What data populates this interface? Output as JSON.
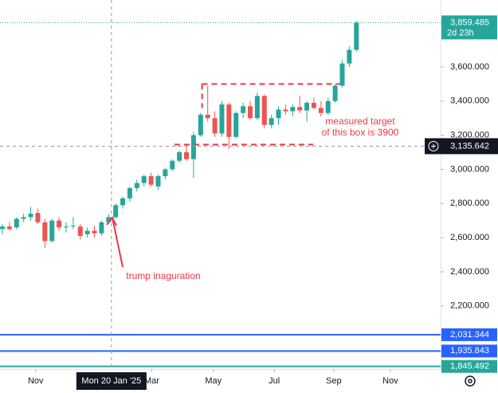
{
  "chart_data": {
    "type": "candlestick",
    "categories": [
      null,
      null,
      null,
      null,
      null,
      null,
      null,
      null,
      null,
      null,
      null,
      null,
      null,
      null,
      null,
      null,
      null,
      null,
      null,
      null,
      null,
      null,
      null,
      null,
      null,
      null,
      null,
      null,
      null,
      null,
      null,
      null,
      null,
      null,
      null,
      null,
      null,
      null,
      null,
      null,
      null,
      null,
      null,
      null,
      null,
      null,
      null,
      null,
      null,
      null,
      null
    ],
    "open": [
      2650,
      2665,
      2660,
      2710,
      2720,
      2745,
      2690,
      2580,
      2700,
      2660,
      2665,
      2665,
      2620,
      2640,
      2625,
      2690,
      2720,
      2790,
      2830,
      2890,
      2920,
      2960,
      2900,
      2960,
      3000,
      3050,
      3100,
      3060,
      3200,
      3320,
      3300,
      3210,
      3380,
      3190,
      3330,
      3370,
      3300,
      3430,
      3260,
      3300,
      3350,
      3340,
      3365,
      3345,
      3390,
      3360,
      3330,
      3400,
      3490,
      3620,
      3700
    ],
    "high": [
      2680,
      2690,
      2720,
      2740,
      2780,
      2770,
      2710,
      2710,
      2720,
      2690,
      2720,
      2680,
      2660,
      2670,
      2700,
      2740,
      2800,
      2840,
      2900,
      2940,
      2970,
      2980,
      2970,
      3010,
      3060,
      3110,
      3140,
      3220,
      3330,
      3490,
      3340,
      3400,
      3390,
      3340,
      3390,
      3400,
      3450,
      3440,
      3320,
      3370,
      3380,
      3380,
      3430,
      3400,
      3420,
      3400,
      3420,
      3500,
      3640,
      3720,
      3870
    ],
    "low": [
      2620,
      2640,
      2650,
      2690,
      2700,
      2680,
      2540,
      2570,
      2640,
      2630,
      2650,
      2590,
      2600,
      2600,
      2610,
      2680,
      2710,
      2770,
      2810,
      2870,
      2900,
      2900,
      2880,
      2940,
      2990,
      3040,
      3050,
      2950,
      3190,
      3280,
      3190,
      3190,
      3120,
      3180,
      3300,
      3290,
      3290,
      3240,
      3240,
      3260,
      3320,
      3310,
      3330,
      3280,
      3350,
      3310,
      3320,
      3390,
      3480,
      3600,
      3690
    ],
    "close": [
      2665,
      2650,
      2710,
      2720,
      2740,
      2690,
      2580,
      2700,
      2660,
      2665,
      2670,
      2610,
      2640,
      2625,
      2690,
      2720,
      2790,
      2830,
      2890,
      2920,
      2960,
      2910,
      2960,
      3000,
      3050,
      3100,
      3060,
      3200,
      3320,
      3300,
      3210,
      3380,
      3190,
      3330,
      3370,
      3300,
      3430,
      3260,
      3300,
      3350,
      3340,
      3365,
      3345,
      3390,
      3360,
      3330,
      3400,
      3490,
      3620,
      3700,
      3859.485
    ],
    "up_color": "#26a69a",
    "down_color": "#ef5350",
    "xlim": [
      -0.34,
      61.9
    ],
    "ylim": [
      1830,
      3992
    ],
    "xticks": [
      {
        "value": 4.7,
        "label": "Nov"
      },
      {
        "value": 21.1,
        "label": "Mar"
      },
      {
        "value": 29.8,
        "label": "May"
      },
      {
        "value": 38.4,
        "label": "Jul"
      },
      {
        "value": 46.8,
        "label": "Sep"
      },
      {
        "value": 54.8,
        "label": "Nov"
      }
    ],
    "yticks": [
      {
        "value": 2200,
        "label": "2,200.000"
      },
      {
        "value": 2400,
        "label": "2,400.000"
      },
      {
        "value": 2600,
        "label": "2,600.000"
      },
      {
        "value": 2800,
        "label": "2,800.000"
      },
      {
        "value": 3000,
        "label": "3,000.000"
      },
      {
        "value": 3200,
        "label": "3,200.000"
      },
      {
        "value": 3400,
        "label": "3,400.000"
      },
      {
        "value": 3600,
        "label": "3,600.000"
      }
    ],
    "last_price": {
      "value": 3859.485,
      "label": "3,859.485",
      "countdown": "2d 23h",
      "color": "#26a69a"
    },
    "crosshair": {
      "x": 15.4,
      "x_label": "Mon 20 Jan '25",
      "y": 3135.642,
      "y_label": "3,135.642"
    },
    "hlines": [
      {
        "value": 2031.344,
        "label": "2,031.344",
        "color": "#2962ff"
      },
      {
        "value": 1935.843,
        "label": "1,935.843",
        "color": "#2962ff"
      },
      {
        "value": 1845.492,
        "label": "1,845.492",
        "color": "#26a69a"
      }
    ],
    "box": {
      "top": 3500,
      "bottom": 3145,
      "color": "#f23645"
    },
    "annotations": [
      {
        "text": "measured target",
        "color": "#f23645"
      },
      {
        "text": "of this box is 3900",
        "color": "#f23645"
      },
      {
        "text": "trump inaguration",
        "color": "#f23645"
      }
    ]
  }
}
